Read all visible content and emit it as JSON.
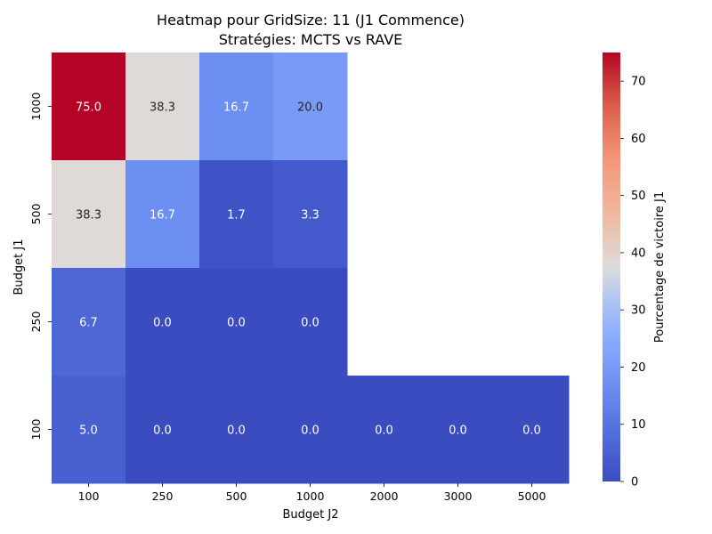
{
  "chart_data": {
    "type": "heatmap",
    "title_line1": "Heatmap pour GridSize: 11 (J1 Commence)",
    "title_line2": "Stratégies: MCTS vs RAVE",
    "xlabel": "Budget J2",
    "ylabel": "Budget J1",
    "x_categories": [
      "100",
      "250",
      "500",
      "1000",
      "2000",
      "3000",
      "5000"
    ],
    "y_categories": [
      "1000",
      "500",
      "250",
      "100"
    ],
    "values": [
      [
        75.0,
        38.3,
        16.7,
        20.0,
        null,
        null,
        null
      ],
      [
        38.3,
        16.7,
        1.7,
        3.3,
        null,
        null,
        null
      ],
      [
        6.7,
        0.0,
        0.0,
        0.0,
        null,
        null,
        null
      ],
      [
        5.0,
        0.0,
        0.0,
        0.0,
        0.0,
        0.0,
        0.0
      ]
    ],
    "colormap": "coolwarm",
    "vmin": 0,
    "vmax": 75,
    "colorbar": {
      "label": "Pourcentage de victoire J1",
      "ticks": [
        0,
        10,
        20,
        30,
        40,
        50,
        60,
        70
      ]
    }
  }
}
